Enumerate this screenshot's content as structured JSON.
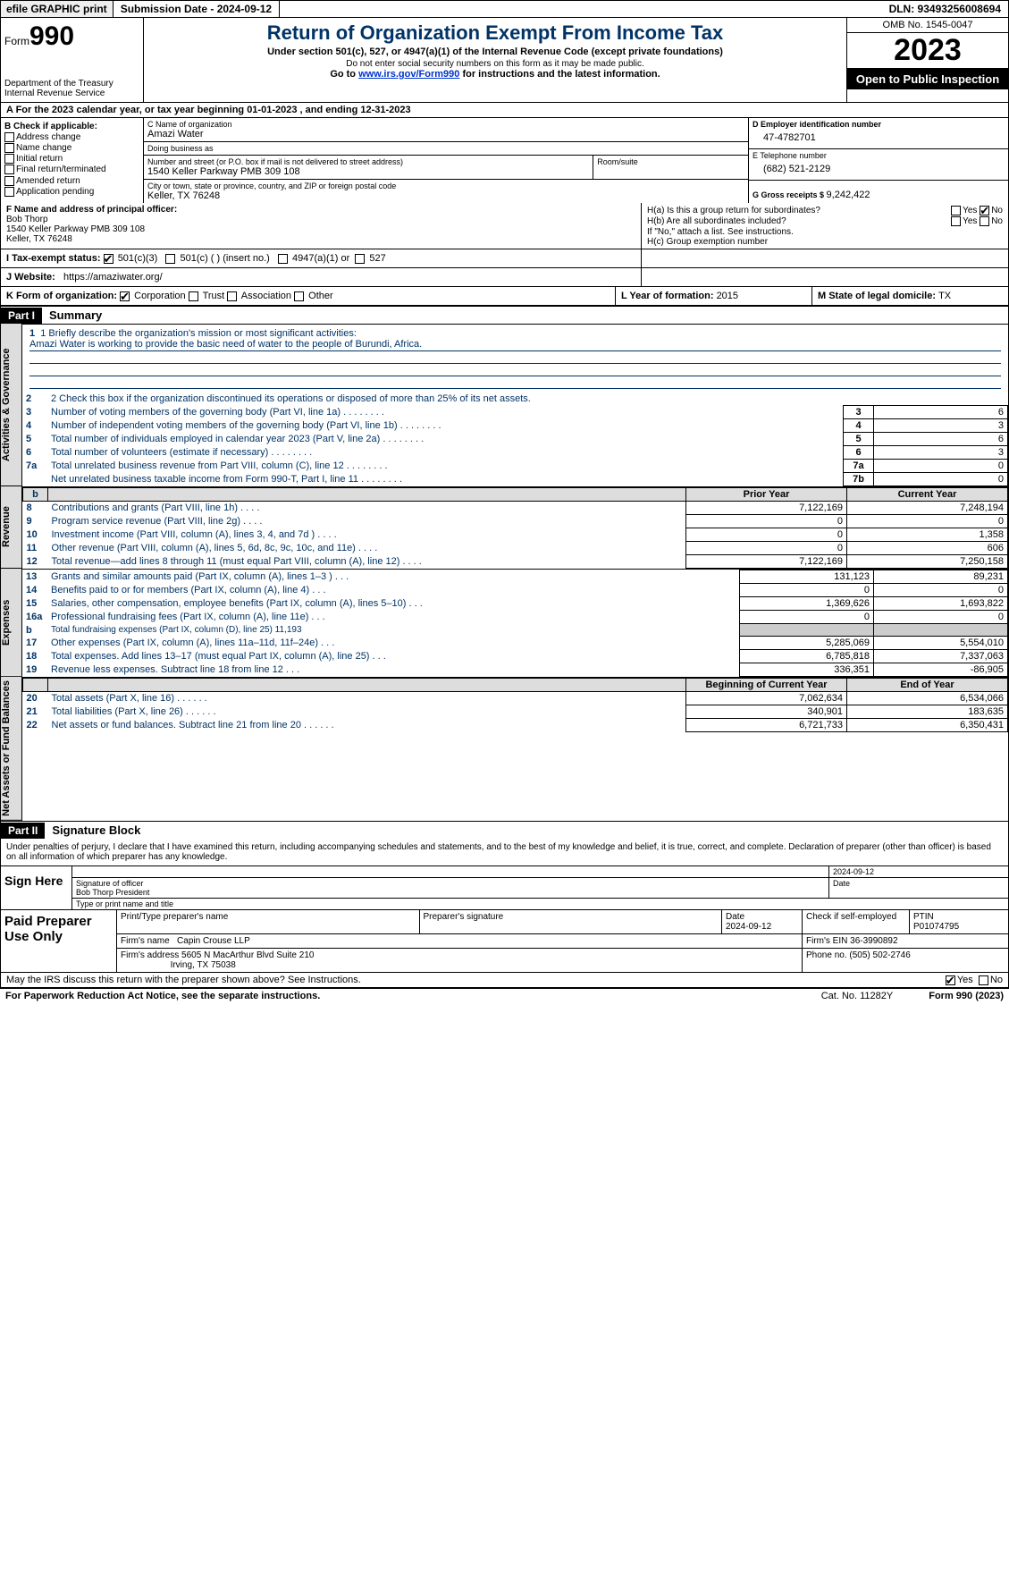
{
  "topbar": {
    "efile": "efile GRAPHIC print",
    "submission": "Submission Date - 2024-09-12",
    "dln": "DLN: 93493256008694"
  },
  "header": {
    "form_prefix": "Form",
    "form_num": "990",
    "dept": "Department of the Treasury Internal Revenue Service",
    "title": "Return of Organization Exempt From Income Tax",
    "subtitle": "Under section 501(c), 527, or 4947(a)(1) of the Internal Revenue Code (except private foundations)",
    "public": "Do not enter social security numbers on this form as it may be made public.",
    "instr_pre": "Go to ",
    "instr_link": "www.irs.gov/Form990",
    "instr_post": " for instructions and the latest information.",
    "omb": "OMB No. 1545-0047",
    "year": "2023",
    "open": "Open to Public Inspection"
  },
  "row_a": "A For the 2023 calendar year, or tax year beginning 01-01-2023   , and ending 12-31-2023",
  "col_b": {
    "hdr": "B Check if applicable:",
    "items": [
      "Address change",
      "Name change",
      "Initial return",
      "Final return/terminated",
      "Amended return",
      "Application pending"
    ]
  },
  "col_c": {
    "name_lbl": "C Name of organization",
    "name": "Amazi Water",
    "dba_lbl": "Doing business as",
    "dba": "",
    "street_lbl": "Number and street (or P.O. box if mail is not delivered to street address)",
    "street": "1540 Keller Parkway PMB 309 108",
    "room_lbl": "Room/suite",
    "room": "",
    "city_lbl": "City or town, state or province, country, and ZIP or foreign postal code",
    "city": "Keller, TX  76248"
  },
  "col_d": {
    "ein_lbl": "D Employer identification number",
    "ein": "47-4782701",
    "tel_lbl": "E Telephone number",
    "tel": "(682) 521-2129",
    "gross_lbl": "G Gross receipts $ ",
    "gross": "9,242,422"
  },
  "officer": {
    "lbl": "F  Name and address of principal officer:",
    "name": "Bob Thorp",
    "addr1": "1540 Keller Parkway PMB 309 108",
    "addr2": "Keller, TX  76248"
  },
  "h": {
    "a": "H(a) Is this a group return for subordinates?",
    "b": "H(b) Are all subordinates included?",
    "b2": "If \"No,\" attach a list. See instructions.",
    "c": "H(c) Group exemption number"
  },
  "yn": {
    "yes": "Yes",
    "no": "No"
  },
  "row_i": {
    "lbl": "I  Tax-exempt status:",
    "o1": "501(c)(3)",
    "o2": "501(c) (  ) (insert no.)",
    "o3": "4947(a)(1) or",
    "o4": "527"
  },
  "row_j": {
    "lbl": "J  Website:",
    "val": "https://amaziwater.org/"
  },
  "row_k": {
    "lbl": "K Form of organization:",
    "o1": "Corporation",
    "o2": "Trust",
    "o3": "Association",
    "o4": "Other"
  },
  "row_l": {
    "lbl": "L Year of formation: ",
    "val": "2015"
  },
  "row_m": {
    "lbl": "M State of legal domicile: ",
    "val": "TX"
  },
  "part1": {
    "tag": "Part I",
    "title": "Summary"
  },
  "vtabs": {
    "a": "Activities & Governance",
    "r": "Revenue",
    "e": "Expenses",
    "n": "Net Assets or Fund Balances"
  },
  "mission": {
    "lbl": "1  Briefly describe the organization's mission or most significant activities:",
    "text": "Amazi Water is working to provide the basic need of water to the people of Burundi, Africa."
  },
  "line2": "2   Check this box       if the organization discontinued its operations or disposed of more than 25% of its net assets.",
  "gov_rows": [
    {
      "n": "3",
      "t": "Number of voting members of the governing body (Part VI, line 1a)",
      "box": "3",
      "v": "6"
    },
    {
      "n": "4",
      "t": "Number of independent voting members of the governing body (Part VI, line 1b)",
      "box": "4",
      "v": "3"
    },
    {
      "n": "5",
      "t": "Total number of individuals employed in calendar year 2023 (Part V, line 2a)",
      "box": "5",
      "v": "6"
    },
    {
      "n": "6",
      "t": "Total number of volunteers (estimate if necessary)",
      "box": "6",
      "v": "3"
    },
    {
      "n": "7a",
      "t": "Total unrelated business revenue from Part VIII, column (C), line 12",
      "box": "7a",
      "v": "0"
    },
    {
      "n": "",
      "t": "Net unrelated business taxable income from Form 990-T, Part I, line 11",
      "box": "7b",
      "v": "0"
    }
  ],
  "rev_hdr": {
    "b": "b",
    "py": "Prior Year",
    "cy": "Current Year"
  },
  "rev_rows": [
    {
      "n": "8",
      "t": "Contributions and grants (Part VIII, line 1h)",
      "py": "7,122,169",
      "cy": "7,248,194"
    },
    {
      "n": "9",
      "t": "Program service revenue (Part VIII, line 2g)",
      "py": "0",
      "cy": "0"
    },
    {
      "n": "10",
      "t": "Investment income (Part VIII, column (A), lines 3, 4, and 7d )",
      "py": "0",
      "cy": "1,358"
    },
    {
      "n": "11",
      "t": "Other revenue (Part VIII, column (A), lines 5, 6d, 8c, 9c, 10c, and 11e)",
      "py": "0",
      "cy": "606"
    },
    {
      "n": "12",
      "t": "Total revenue—add lines 8 through 11 (must equal Part VIII, column (A), line 12)",
      "py": "7,122,169",
      "cy": "7,250,158"
    }
  ],
  "exp_rows": [
    {
      "n": "13",
      "t": "Grants and similar amounts paid (Part IX, column (A), lines 1–3 )",
      "py": "131,123",
      "cy": "89,231"
    },
    {
      "n": "14",
      "t": "Benefits paid to or for members (Part IX, column (A), line 4)",
      "py": "0",
      "cy": "0"
    },
    {
      "n": "15",
      "t": "Salaries, other compensation, employee benefits (Part IX, column (A), lines 5–10)",
      "py": "1,369,626",
      "cy": "1,693,822"
    },
    {
      "n": "16a",
      "t": "Professional fundraising fees (Part IX, column (A), line 11e)",
      "py": "0",
      "cy": "0"
    },
    {
      "n": "b",
      "t": "Total fundraising expenses (Part IX, column (D), line 25) 11,193",
      "py": "",
      "cy": "",
      "shade": true
    },
    {
      "n": "17",
      "t": "Other expenses (Part IX, column (A), lines 11a–11d, 11f–24e)",
      "py": "5,285,069",
      "cy": "5,554,010"
    },
    {
      "n": "18",
      "t": "Total expenses. Add lines 13–17 (must equal Part IX, column (A), line 25)",
      "py": "6,785,818",
      "cy": "7,337,063"
    },
    {
      "n": "19",
      "t": "Revenue less expenses. Subtract line 18 from line 12",
      "py": "336,351",
      "cy": "-86,905"
    }
  ],
  "net_hdr": {
    "py": "Beginning of Current Year",
    "cy": "End of Year"
  },
  "net_rows": [
    {
      "n": "20",
      "t": "Total assets (Part X, line 16)",
      "py": "7,062,634",
      "cy": "6,534,066"
    },
    {
      "n": "21",
      "t": "Total liabilities (Part X, line 26)",
      "py": "340,901",
      "cy": "183,635"
    },
    {
      "n": "22",
      "t": "Net assets or fund balances. Subtract line 21 from line 20",
      "py": "6,721,733",
      "cy": "6,350,431"
    }
  ],
  "part2": {
    "tag": "Part II",
    "title": "Signature Block"
  },
  "perjury": "Under penalties of perjury, I declare that I have examined this return, including accompanying schedules and statements, and to the best of my knowledge and belief, it is true, correct, and complete. Declaration of preparer (other than officer) is based on all information of which preparer has any knowledge.",
  "sign": {
    "lbl": "Sign Here",
    "sig_date": "2024-09-12",
    "sig_lbl": "Signature of officer",
    "date_lbl": "Date",
    "name": "Bob Thorp President",
    "type_lbl": "Type or print name and title"
  },
  "prep": {
    "lbl": "Paid Preparer Use Only",
    "h1": "Print/Type preparer's name",
    "h2": "Preparer's signature",
    "h3": "Date",
    "h3v": "2024-09-12",
    "h4": "Check        if self-employed",
    "h5": "PTIN",
    "h5v": "P01074795",
    "firm_lbl": "Firm's name",
    "firm": "Capin Crouse LLP",
    "ein_lbl": "Firm's EIN",
    "ein": "36-3990892",
    "addr_lbl": "Firm's address",
    "addr1": "5605 N MacArthur Blvd Suite 210",
    "addr2": "Irving, TX  75038",
    "phone_lbl": "Phone no.",
    "phone": "(505) 502-2746"
  },
  "discuss": "May the IRS discuss this return with the preparer shown above? See Instructions.",
  "footer": {
    "l": "For Paperwork Reduction Act Notice, see the separate instructions.",
    "c": "Cat. No. 11282Y",
    "r": "Form 990 (2023)"
  }
}
